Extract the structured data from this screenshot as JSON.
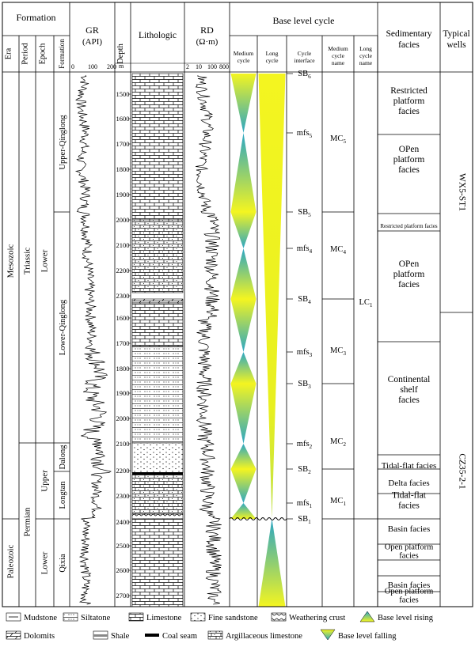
{
  "header": {
    "formation": "Formation",
    "era": "Era",
    "period": "Period",
    "epoch": "Epoch",
    "formation_col": "Formation",
    "gr_title": "GR",
    "gr_unit": "(API)",
    "depth": "Depth",
    "depth_unit": "m",
    "lithologic": "Lithologic",
    "rd_title": "RD",
    "rd_unit": "(Ω·m)",
    "base_level_cycle": "Base level cycle",
    "medium_cycle": [
      "Medium",
      "cycle"
    ],
    "long_cycle": [
      "Long",
      "cycle"
    ],
    "cycle_interface": [
      "Cycle",
      "interface"
    ],
    "medium_cycle_name": [
      "Medium",
      "cycle",
      "name"
    ],
    "long_cycle_name": [
      "Long",
      "cycle",
      "name"
    ],
    "sedimentary_facies": [
      "Sedimentary",
      "facies"
    ],
    "typical_wells": [
      "Typical",
      "wells"
    ]
  },
  "gr_ticks": [
    "0",
    "100",
    "200"
  ],
  "rd_ticks": [
    "2",
    "10",
    "100",
    "800"
  ],
  "eras": [
    "Mesozoic",
    "Paleozoic"
  ],
  "periods": [
    "Triassic",
    "Permian"
  ],
  "epochs": [
    "Lower",
    "Upper",
    "Lower"
  ],
  "formations": [
    "Upper-Qinglong",
    "Lower-Qinglong",
    "Dalong",
    "Longtan",
    "Qixia"
  ],
  "depth_labels": [
    "1500",
    "1600",
    "1700",
    "1800",
    "1900",
    "2000",
    "2100",
    "2200",
    "2300",
    "1600",
    "1700",
    "1800",
    "1900",
    "2000",
    "2100",
    "2200",
    "2300",
    "2400",
    "2500",
    "2600",
    "2700"
  ],
  "interfaces": [
    {
      "main": "SB",
      "sub": "6"
    },
    {
      "main": "mfs",
      "sub": "5"
    },
    {
      "main": "SB",
      "sub": "5"
    },
    {
      "main": "mfs",
      "sub": "4"
    },
    {
      "main": "SB",
      "sub": "4"
    },
    {
      "main": "mfs",
      "sub": "3"
    },
    {
      "main": "SB",
      "sub": "3"
    },
    {
      "main": "mfs",
      "sub": "2"
    },
    {
      "main": "SB",
      "sub": "2"
    },
    {
      "main": "mfs",
      "sub": "1"
    },
    {
      "main": "SB",
      "sub": "1"
    }
  ],
  "medium_cycle_names": [
    {
      "main": "MC",
      "sub": "5"
    },
    {
      "main": "MC",
      "sub": "4"
    },
    {
      "main": "MC",
      "sub": "3"
    },
    {
      "main": "MC",
      "sub": "2"
    },
    {
      "main": "MC",
      "sub": "1"
    }
  ],
  "long_cycle_name": {
    "main": "LC",
    "sub": "1"
  },
  "facies": [
    [
      "Restricted",
      "platform",
      "facies"
    ],
    [
      "OPen",
      "platform",
      "facies"
    ],
    [
      "Restricted platform facies"
    ],
    [
      "OPen",
      "platform",
      "facies"
    ],
    [
      "Continental",
      "shelf",
      "facies"
    ],
    [
      "Tidal-flat facies"
    ],
    [
      "Delta facies"
    ],
    [
      "Tidal-flat",
      "facies"
    ],
    [
      "Basin facies"
    ],
    [
      "Open platform",
      "facies"
    ],
    [
      "Basin facies"
    ],
    [
      "Open platform",
      "facies"
    ]
  ],
  "wells": [
    "WX5-ST1",
    "CZ35-2-1"
  ],
  "legend": [
    "Mudstone",
    "Siltatone",
    "Limestone",
    "Fine sandstone",
    "Weathering crust",
    "Base level rising",
    "Dolomits",
    "Shale",
    "Coal seam",
    "Argillaceous limestone",
    "Base level falling"
  ],
  "colors": {
    "rising_top": "#2aa6c4",
    "rising_bottom": "#f5f52a",
    "line": "#000000"
  }
}
